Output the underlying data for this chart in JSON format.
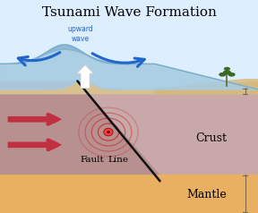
{
  "title": "Tsunami Wave Formation",
  "title_fontsize": 11,
  "bg_color": "#ddeeff",
  "sky_color": "#ddeeff",
  "ocean_color": "#a8cce0",
  "ocean_dark": "#7aaec8",
  "seafloor_color": "#d4c090",
  "crust_color": "#c0a0a0",
  "crust_top_color": "#d8b898",
  "mantle_color": "#e8b060",
  "subduct_color": "#b08878",
  "fault_color": "#111111",
  "epicenter_color": "#cc2222",
  "arrow_red": "#c03040",
  "arrow_blue": "#2266cc",
  "upward_arrow": "#ffffff",
  "label_crust": "Crust",
  "label_mantle": "Mantle",
  "label_fault": "Fault",
  "label_line": "Line",
  "label_upward": "upward\nwave",
  "tree_color": "#3a6a20"
}
